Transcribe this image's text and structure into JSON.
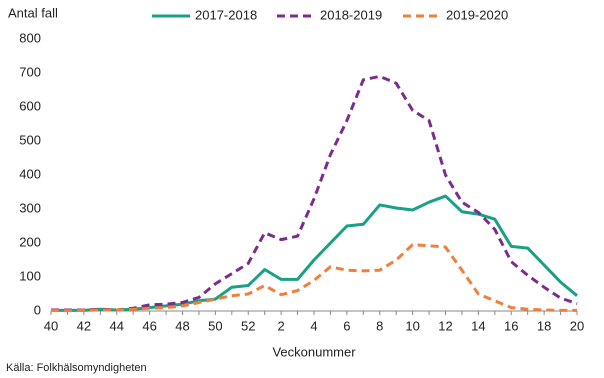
{
  "chart_data": {
    "type": "line",
    "y_label": "Antal fall",
    "x_label": "Veckonummer",
    "source": "Källa: Folkhälsomyndigheten",
    "categories": [
      "40",
      null,
      "42",
      null,
      "44",
      null,
      "46",
      null,
      "48",
      null,
      "50",
      null,
      "52",
      null,
      "2",
      null,
      "4",
      null,
      "6",
      null,
      "8",
      null,
      "10",
      null,
      "12",
      null,
      "14",
      null,
      "16",
      null,
      "18",
      null,
      "20"
    ],
    "series": [
      {
        "name": "2017-2018",
        "color": "#1aa084",
        "style": "solid",
        "values": [
          2,
          2,
          2,
          5,
          3,
          5,
          10,
          15,
          20,
          30,
          35,
          70,
          75,
          122,
          93,
          93,
          150,
          200,
          250,
          255,
          312,
          303,
          297,
          320,
          338,
          292,
          285,
          270,
          190,
          185,
          135,
          85,
          45
        ]
      },
      {
        "name": "2018-2019",
        "color": "#7b2d8e",
        "style": "dashed",
        "values": [
          3,
          3,
          3,
          5,
          3,
          8,
          18,
          20,
          25,
          40,
          80,
          110,
          140,
          230,
          210,
          220,
          330,
          460,
          560,
          680,
          690,
          670,
          590,
          560,
          400,
          320,
          290,
          240,
          145,
          105,
          70,
          38,
          22
        ]
      },
      {
        "name": "2019-2020",
        "color": "#f07f3c",
        "style": "dashed",
        "values": [
          1,
          1,
          2,
          3,
          3,
          5,
          8,
          10,
          15,
          25,
          35,
          45,
          50,
          75,
          48,
          60,
          90,
          130,
          120,
          118,
          120,
          150,
          195,
          192,
          188,
          120,
          50,
          30,
          10,
          5,
          3,
          2,
          2
        ]
      }
    ],
    "ylim": [
      0,
      800
    ],
    "yticks": [
      0,
      100,
      200,
      300,
      400,
      500,
      600,
      700,
      800
    ],
    "grid": false
  }
}
